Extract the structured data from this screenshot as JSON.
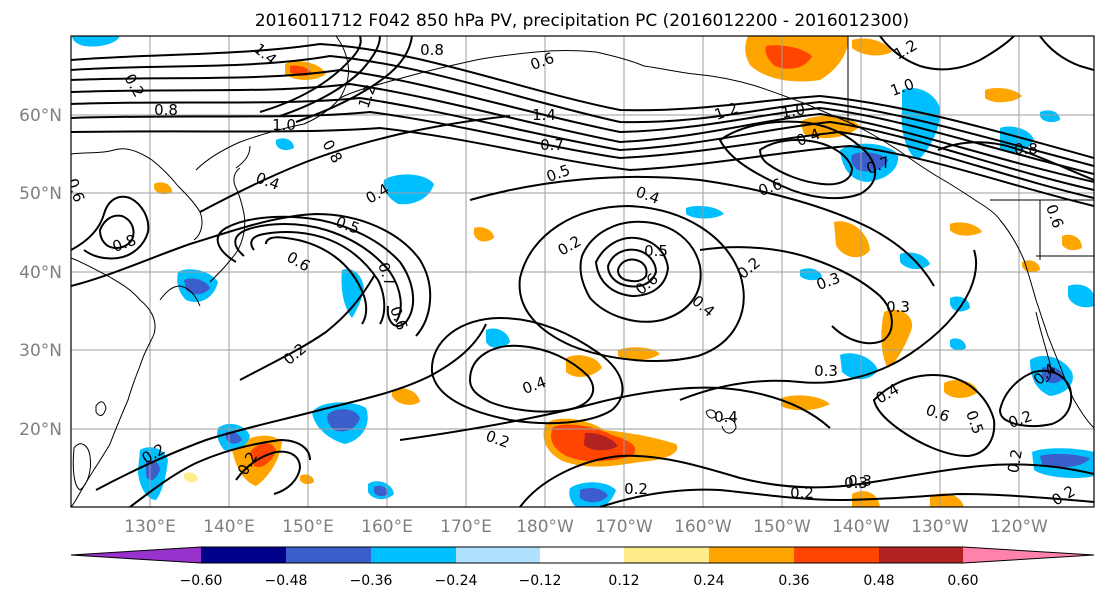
{
  "title": "2016011712 F042 850 hPa PV, precipitation PC (2016012200 - 2016012300)",
  "lat_ticks": [
    "60°N",
    "50°N",
    "40°N",
    "30°N",
    "20°N"
  ],
  "lon_ticks": [
    "130°E",
    "140°E",
    "150°E",
    "160°E",
    "170°E",
    "180°W",
    "170°W",
    "160°W",
    "150°W",
    "140°W",
    "130°W",
    "120°W"
  ],
  "colorbar": {
    "ticks": [
      "−0.60",
      "−0.48",
      "−0.36",
      "−0.24",
      "−0.12",
      "0.12",
      "0.24",
      "0.36",
      "0.48",
      "0.60"
    ],
    "colors": [
      "#9932cc",
      "#00008b",
      "#3a5fcd",
      "#00bfff",
      "#b0e2ff",
      "#ffffff",
      "#ffec8b",
      "#ffa500",
      "#ff4500",
      "#b22222",
      "#ff82ab"
    ]
  },
  "contour_labels": [
    "0.8",
    "1.4",
    "1.2",
    "0.6",
    "0.8",
    "1.0",
    "0.8",
    "0.4",
    "0.6",
    "0.8",
    "0.4",
    "0.5",
    "0.6",
    "0.7",
    "0.6",
    "0.2",
    "0.2",
    "0.5",
    "0.4",
    "0.6",
    "0.4",
    "0.2",
    "0.2",
    "0.2",
    "0.2",
    "0.2",
    "0.3",
    "0.2",
    "0.3",
    "0.2",
    "0.4",
    "0.3",
    "0.4",
    "0.6",
    "0.5",
    "0.2",
    "0.4",
    "1.4",
    "0.7",
    "0.5",
    "0.4",
    "1.2",
    "1.0",
    "0.4",
    "0.6",
    "0.7",
    "1.0",
    "1.2",
    "0.8",
    "0.6",
    "0.3",
    "0.2",
    "0.3",
    "0.2"
  ],
  "map": {
    "projection": "plate-carree",
    "lon_range": [
      "120°E",
      "115°W"
    ],
    "lat_range": [
      "10°N",
      "70°N"
    ],
    "fields": [
      "850 hPa PV (contours)",
      "precipitation PC (shaded)"
    ]
  }
}
